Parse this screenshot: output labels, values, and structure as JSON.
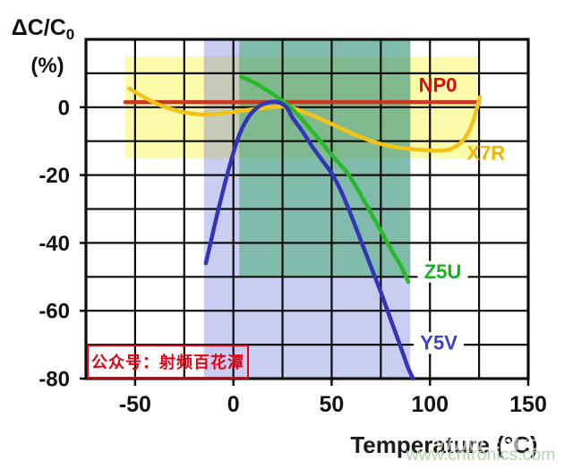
{
  "chart_data": {
    "type": "line",
    "xlabel": "Temperature (°C)",
    "ylabel_main": "ΔC/C",
    "ylabel_sub": "0",
    "ylabel_unit": "(%)",
    "xlim": [
      -75,
      150
    ],
    "ylim": [
      -80,
      20
    ],
    "x_grid_step": 25,
    "y_grid_step": 10,
    "x_ticks": [
      -50,
      0,
      50,
      100,
      150
    ],
    "y_ticks": [
      0,
      -20,
      -40,
      -60,
      -80
    ],
    "grid": true,
    "legend_position": "inline-labels",
    "regions": [
      {
        "name": "x7r-range",
        "x": [
          -55,
          125
        ],
        "y": [
          -15,
          15
        ],
        "color": "rgba(246,246,66,0.45)"
      },
      {
        "name": "y5v-range",
        "x": [
          -15,
          90
        ],
        "y": [
          -80,
          20
        ],
        "color": "rgba(88,98,214,0.32)"
      },
      {
        "name": "z5u-range",
        "x": [
          3,
          90
        ],
        "y": [
          -50,
          20
        ],
        "color": "rgba(50,168,94,0.48)"
      }
    ],
    "series": [
      {
        "name": "NP0",
        "color": "#c8391f",
        "label_color": "#e30613",
        "label_pos": [
          104,
          6.5
        ],
        "label_bg": false,
        "points": [
          [
            -55,
            1.5
          ],
          [
            125,
            1.5
          ]
        ]
      },
      {
        "name": "X7R",
        "color": "#f2c318",
        "label_color": "#eeb600",
        "label_pos": [
          128.5,
          -13.5
        ],
        "label_bg": false,
        "points": [
          [
            -53,
            5.5
          ],
          [
            -45,
            2.8
          ],
          [
            -38,
            0.8
          ],
          [
            -30,
            -0.8
          ],
          [
            -22,
            -1.8
          ],
          [
            -14,
            -2.2
          ],
          [
            -6,
            -1.8
          ],
          [
            2,
            -1.2
          ],
          [
            10,
            -0.6
          ],
          [
            18,
            -0.1
          ],
          [
            26,
            0.2
          ],
          [
            32,
            -0.6
          ],
          [
            40,
            -2.4
          ],
          [
            48,
            -4.4
          ],
          [
            56,
            -6.6
          ],
          [
            64,
            -8.6
          ],
          [
            72,
            -10.3
          ],
          [
            80,
            -11.5
          ],
          [
            88,
            -12.2
          ],
          [
            96,
            -12.6
          ],
          [
            104,
            -12.8
          ],
          [
            110,
            -12.4
          ],
          [
            115,
            -10.8
          ],
          [
            119,
            -8
          ],
          [
            122,
            -4
          ],
          [
            124.5,
            1
          ],
          [
            125.5,
            3
          ]
        ]
      },
      {
        "name": "Z5U",
        "color": "#29ba29",
        "label_color": "#10b41c",
        "label_pos": [
          106.5,
          -48.5
        ],
        "label_bg": true,
        "points": [
          [
            4,
            9
          ],
          [
            10,
            7.4
          ],
          [
            16,
            5.4
          ],
          [
            22,
            3.1
          ],
          [
            28,
            0.6
          ],
          [
            34,
            -3
          ],
          [
            40,
            -7
          ],
          [
            46,
            -11.2
          ],
          [
            52,
            -15.4
          ],
          [
            58,
            -19.4
          ],
          [
            64,
            -25
          ],
          [
            70,
            -31.2
          ],
          [
            76,
            -37.5
          ],
          [
            81,
            -42.7
          ],
          [
            85,
            -46.6
          ],
          [
            89,
            -51.5
          ]
        ]
      },
      {
        "name": "Y5V",
        "color": "#3434b8",
        "label_color": "#3f3fcc",
        "label_pos": [
          104.5,
          -69.5
        ],
        "label_bg": true,
        "points": [
          [
            -14,
            -46
          ],
          [
            -11,
            -38.5
          ],
          [
            -8,
            -31
          ],
          [
            -5,
            -24
          ],
          [
            -2,
            -17.5
          ],
          [
            1,
            -11.5
          ],
          [
            4,
            -6.8
          ],
          [
            8,
            -2.6
          ],
          [
            12,
            -0.2
          ],
          [
            16,
            1.1
          ],
          [
            22,
            1.6
          ],
          [
            27,
            0
          ],
          [
            30,
            -3
          ],
          [
            35,
            -7
          ],
          [
            40,
            -11.5
          ],
          [
            45,
            -15.5
          ],
          [
            50,
            -19.5
          ],
          [
            55,
            -25
          ],
          [
            60,
            -32
          ],
          [
            65,
            -39.5
          ],
          [
            70,
            -47
          ],
          [
            75,
            -54.5
          ],
          [
            80,
            -62.5
          ],
          [
            85,
            -70.5
          ],
          [
            89,
            -77
          ],
          [
            91.5,
            -80
          ]
        ]
      }
    ]
  },
  "stamp": {
    "text": "公众号：射频百花潭",
    "color": "#e60012"
  },
  "watermark": {
    "text": "www.cntronics.com",
    "color": "#b7d0ad"
  }
}
